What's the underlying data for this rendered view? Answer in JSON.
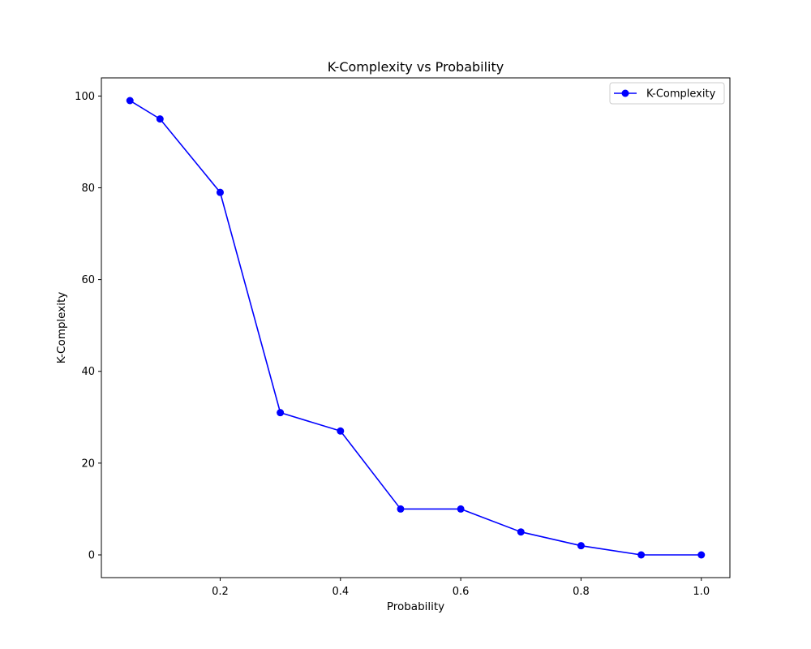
{
  "chart_data": {
    "type": "line",
    "title": "K-Complexity vs Probability",
    "xlabel": "Probability",
    "ylabel": "K-Complexity",
    "xlim": [
      0.0025,
      1.0475
    ],
    "ylim": [
      -4.95,
      103.95
    ],
    "xticks": [
      0.2,
      0.4,
      0.6,
      0.8,
      1.0
    ],
    "xtick_labels": [
      "0.2",
      "0.4",
      "0.6",
      "0.8",
      "1.0"
    ],
    "yticks": [
      0,
      20,
      40,
      60,
      80,
      100
    ],
    "ytick_labels": [
      "0",
      "20",
      "40",
      "60",
      "80",
      "100"
    ],
    "grid": false,
    "legend_position": "top-right",
    "series": [
      {
        "name": "K-Complexity",
        "color": "#0000ff",
        "marker": "circle",
        "x": [
          0.05,
          0.1,
          0.2,
          0.3,
          0.4,
          0.5,
          0.6,
          0.7,
          0.8,
          0.9,
          1.0
        ],
        "y": [
          99,
          95,
          79,
          31,
          27,
          10,
          10,
          5,
          2,
          0,
          0
        ]
      }
    ]
  }
}
